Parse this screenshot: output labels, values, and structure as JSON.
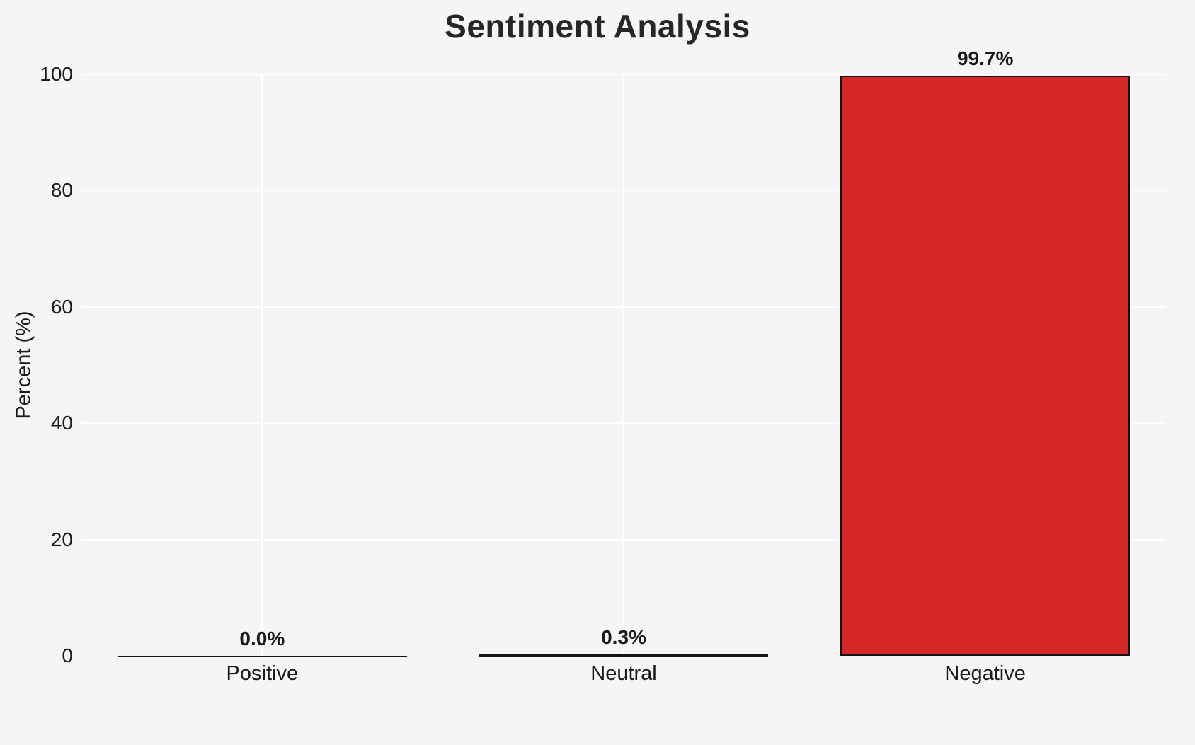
{
  "chart_data": {
    "type": "bar",
    "title": "Sentiment Analysis",
    "categories": [
      "Positive",
      "Neutral",
      "Negative"
    ],
    "values": [
      0.0,
      0.3,
      99.7
    ],
    "value_labels": [
      "0.0%",
      "0.3%",
      "99.7%"
    ],
    "xlabel": "",
    "ylabel": "Percent (%)",
    "ylim": [
      0,
      100
    ],
    "yticks": [
      0,
      20,
      40,
      60,
      80,
      100
    ],
    "grid": true,
    "legend": "none",
    "bar_color": "#d62728",
    "bar_edge_color": "#141414",
    "background_color": "#f5f5f6",
    "gridline_color": "#ffffff"
  }
}
